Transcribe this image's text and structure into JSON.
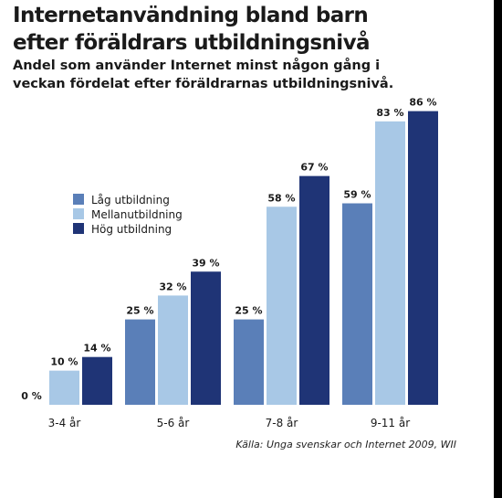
{
  "title_line1": "Internetanvändning bland barn",
  "title_line2": "efter föräldrars utbildningsnivå",
  "subtitle_line1": "Andel som använder Internet minst någon gång i",
  "subtitle_line2": "veckan fördelat efter föräldrarnas utbildningsnivå.",
  "source": "Källa: Unga svenskar och Internet 2009, WII",
  "chart_data": {
    "type": "bar",
    "categories": [
      "3-4 år",
      "5-6 år",
      "7-8 år",
      "9-11 år"
    ],
    "series": [
      {
        "name": "Låg utbildning",
        "values": [
          0,
          25,
          25,
          59
        ],
        "color": "#5a7fb8"
      },
      {
        "name": "Mellanutbildning",
        "values": [
          10,
          32,
          58,
          83
        ],
        "color": "#a8c8e6"
      },
      {
        "name": "Hög utbildning",
        "values": [
          14,
          39,
          67,
          86
        ],
        "color": "#1f3476"
      }
    ],
    "value_suffix": " %",
    "ylim": [
      0,
      100
    ],
    "grid": false,
    "legend_position": "left"
  }
}
